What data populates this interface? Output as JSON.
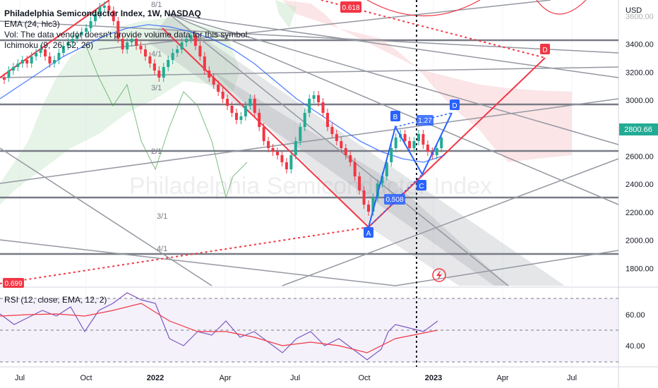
{
  "header": {
    "title": "Philadelphia Semiconductor Index, 1W, NASDAQ",
    "ema_label": "EMA (24, hlc3)",
    "vol_label": "Vol: The data vendor doesn't provide volume data for this symbol.",
    "ichimoku_label": "Ichimoku (9, 26, 52, 26)",
    "rsi_label": "RSI (12, close, EMA, 12, 2)",
    "currency": "USD"
  },
  "watermark": "Philadelphia Semiconductor Index",
  "price_axis": {
    "ticks": [
      "3600.00",
      "3400.00",
      "3200.00",
      "3000.00",
      "2800.00",
      "2600.00",
      "2400.00",
      "2200.00",
      "2000.00",
      "1800.00"
    ],
    "current_price": "2800.66"
  },
  "rsi_axis": {
    "ticks": [
      "60.00",
      "40.00"
    ]
  },
  "time_axis": {
    "ticks": [
      "Jul",
      "Oct",
      "2022",
      "Apr",
      "Jul",
      "Oct",
      "2023",
      "Apr",
      "Jul"
    ]
  },
  "annotations": {
    "fib_top": "0.618",
    "fib_bottom": "0.699",
    "gann_labels": [
      "8/1",
      "4/1",
      "3/1",
      "2/1",
      "3/1",
      "4/1"
    ],
    "pattern_points": [
      "A",
      "B",
      "C",
      "D"
    ],
    "target_point": "D",
    "ratio_bc": "0.508",
    "ratio_cd": "1.27"
  },
  "colors": {
    "up": "#22ab94",
    "down": "#f23645",
    "ema": "#2962ff",
    "pattern": "#2962ff",
    "projection": "#f23645",
    "rsi": "#7e57c2"
  }
}
